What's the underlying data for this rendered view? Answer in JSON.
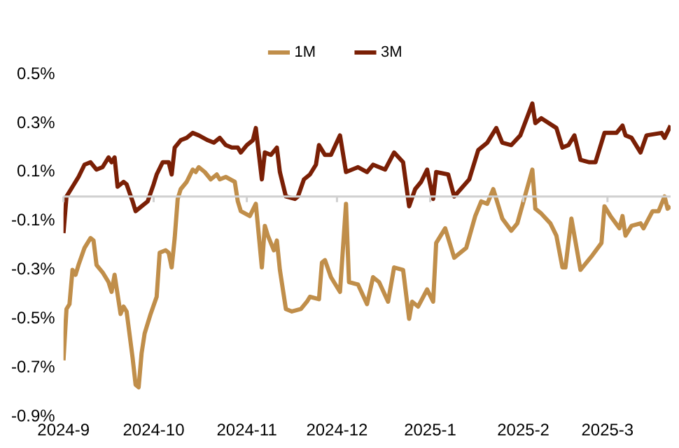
{
  "chart_data": {
    "type": "line",
    "legend": "top",
    "line_style": "solid",
    "marker": "none",
    "grid": false,
    "ylim": [
      -0.9,
      0.5
    ],
    "yticks": [
      {
        "value": -0.9,
        "label": "-0.9%"
      },
      {
        "value": -0.7,
        "label": "-0.7%"
      },
      {
        "value": -0.5,
        "label": "-0.5%"
      },
      {
        "value": -0.3,
        "label": "-0.3%"
      },
      {
        "value": -0.1,
        "label": "-0.1%"
      },
      {
        "value": 0.1,
        "label": "0.1%"
      },
      {
        "value": 0.3,
        "label": "0.3%"
      },
      {
        "value": 0.5,
        "label": "0.5%"
      }
    ],
    "xlim": [
      "2024-09-01",
      "2025-03-22"
    ],
    "xticks": [
      {
        "value": "2024-09-01",
        "label": "2024-9"
      },
      {
        "value": "2024-10-01",
        "label": "2024-10"
      },
      {
        "value": "2024-11-01",
        "label": "2024-11"
      },
      {
        "value": "2024-12-01",
        "label": "2024-12"
      },
      {
        "value": "2025-01-01",
        "label": "2025-1"
      },
      {
        "value": "2025-02-01",
        "label": "2025-2"
      },
      {
        "value": "2025-03-01",
        "label": "2025-3"
      }
    ],
    "series": [
      {
        "name": "1M",
        "color": "#c08e4a",
        "x": [
          "2024-09-01",
          "2024-09-02",
          "2024-09-03",
          "2024-09-04",
          "2024-09-05",
          "2024-09-06",
          "2024-09-08",
          "2024-09-10",
          "2024-09-11",
          "2024-09-12",
          "2024-09-14",
          "2024-09-16",
          "2024-09-17",
          "2024-09-18",
          "2024-09-20",
          "2024-09-21",
          "2024-09-22",
          "2024-09-24",
          "2024-09-25",
          "2024-09-26",
          "2024-09-27",
          "2024-09-28",
          "2024-09-30",
          "2024-10-02",
          "2024-10-03",
          "2024-10-05",
          "2024-10-06",
          "2024-10-07",
          "2024-10-08",
          "2024-10-09",
          "2024-10-10",
          "2024-10-12",
          "2024-10-14",
          "2024-10-15",
          "2024-10-16",
          "2024-10-18",
          "2024-10-20",
          "2024-10-22",
          "2024-10-23",
          "2024-10-25",
          "2024-10-28",
          "2024-10-29",
          "2024-10-30",
          "2024-11-02",
          "2024-11-04",
          "2024-11-06",
          "2024-11-07",
          "2024-11-08",
          "2024-11-10",
          "2024-11-11",
          "2024-11-12",
          "2024-11-14",
          "2024-11-16",
          "2024-11-19",
          "2024-11-21",
          "2024-11-22",
          "2024-11-25",
          "2024-11-26",
          "2024-11-27",
          "2024-11-29",
          "2024-12-02",
          "2024-12-04",
          "2024-12-05",
          "2024-12-08",
          "2024-12-11",
          "2024-12-13",
          "2024-12-15",
          "2024-12-18",
          "2024-12-20",
          "2024-12-23",
          "2024-12-25",
          "2024-12-26",
          "2024-12-28",
          "2024-12-31",
          "2025-01-02",
          "2025-01-03",
          "2025-01-06",
          "2025-01-09",
          "2025-01-13",
          "2025-01-16",
          "2025-01-18",
          "2025-01-20",
          "2025-01-22",
          "2025-01-25",
          "2025-01-28",
          "2025-01-30",
          "2025-02-04",
          "2025-02-05",
          "2025-02-07",
          "2025-02-10",
          "2025-02-12",
          "2025-02-14",
          "2025-02-15",
          "2025-02-17",
          "2025-02-20",
          "2025-02-24",
          "2025-02-27",
          "2025-02-28",
          "2025-03-02",
          "2025-03-05",
          "2025-03-06",
          "2025-03-07",
          "2025-03-09",
          "2025-03-12",
          "2025-03-13",
          "2025-03-16",
          "2025-03-18",
          "2025-03-20",
          "2025-03-21",
          "2025-03-22"
        ],
        "values": [
          -0.67,
          -0.46,
          -0.44,
          -0.3,
          -0.32,
          -0.28,
          -0.21,
          -0.17,
          -0.18,
          -0.28,
          -0.31,
          -0.35,
          -0.39,
          -0.32,
          -0.48,
          -0.45,
          -0.47,
          -0.66,
          -0.77,
          -0.78,
          -0.64,
          -0.56,
          -0.48,
          -0.41,
          -0.23,
          -0.22,
          -0.23,
          -0.29,
          -0.17,
          -0.01,
          0.03,
          0.06,
          0.11,
          0.1,
          0.12,
          0.1,
          0.07,
          0.09,
          0.07,
          0.08,
          0.06,
          -0.02,
          -0.06,
          -0.08,
          -0.03,
          -0.29,
          -0.12,
          -0.16,
          -0.22,
          -0.18,
          -0.3,
          -0.46,
          -0.47,
          -0.46,
          -0.43,
          -0.41,
          -0.42,
          -0.27,
          -0.26,
          -0.33,
          -0.39,
          -0.03,
          -0.35,
          -0.36,
          -0.44,
          -0.33,
          -0.35,
          -0.43,
          -0.29,
          -0.3,
          -0.5,
          -0.43,
          -0.45,
          -0.38,
          -0.43,
          -0.19,
          -0.13,
          -0.25,
          -0.21,
          -0.08,
          -0.02,
          -0.03,
          0.03,
          -0.09,
          -0.14,
          -0.11,
          0.11,
          -0.05,
          -0.07,
          -0.11,
          -0.16,
          -0.29,
          -0.29,
          -0.09,
          -0.3,
          -0.24,
          -0.19,
          -0.04,
          -0.08,
          -0.13,
          -0.08,
          -0.16,
          -0.12,
          -0.11,
          -0.13,
          -0.06,
          -0.06,
          0.0,
          -0.05,
          -0.04
        ]
      },
      {
        "name": "3M",
        "color": "#7a1f05",
        "x": [
          "2024-09-01",
          "2024-09-02",
          "2024-09-03",
          "2024-09-04",
          "2024-09-06",
          "2024-09-08",
          "2024-09-10",
          "2024-09-12",
          "2024-09-14",
          "2024-09-15",
          "2024-09-16",
          "2024-09-17",
          "2024-09-18",
          "2024-09-19",
          "2024-09-21",
          "2024-09-22",
          "2024-09-24",
          "2024-09-25",
          "2024-09-27",
          "2024-09-29",
          "2024-10-01",
          "2024-10-02",
          "2024-10-04",
          "2024-10-06",
          "2024-10-07",
          "2024-10-08",
          "2024-10-10",
          "2024-10-12",
          "2024-10-14",
          "2024-10-16",
          "2024-10-19",
          "2024-10-21",
          "2024-10-23",
          "2024-10-25",
          "2024-10-27",
          "2024-10-29",
          "2024-10-30",
          "2024-11-01",
          "2024-11-03",
          "2024-11-04",
          "2024-11-06",
          "2024-11-07",
          "2024-11-09",
          "2024-11-11",
          "2024-11-12",
          "2024-11-14",
          "2024-11-17",
          "2024-11-18",
          "2024-11-20",
          "2024-11-22",
          "2024-11-24",
          "2024-11-25",
          "2024-11-27",
          "2024-11-29",
          "2024-12-02",
          "2024-12-04",
          "2024-12-08",
          "2024-12-11",
          "2024-12-13",
          "2024-12-17",
          "2024-12-20",
          "2024-12-23",
          "2024-12-25",
          "2024-12-27",
          "2024-12-29",
          "2024-12-31",
          "2025-01-02",
          "2025-01-03",
          "2025-01-07",
          "2025-01-09",
          "2025-01-14",
          "2025-01-17",
          "2025-01-20",
          "2025-01-23",
          "2025-01-25",
          "2025-01-28",
          "2025-01-31",
          "2025-02-04",
          "2025-02-05",
          "2025-02-07",
          "2025-02-12",
          "2025-02-14",
          "2025-02-16",
          "2025-02-18",
          "2025-02-20",
          "2025-02-23",
          "2025-02-25",
          "2025-02-28",
          "2025-03-04",
          "2025-03-06",
          "2025-03-07",
          "2025-03-09",
          "2025-03-12",
          "2025-03-14",
          "2025-03-19",
          "2025-03-20",
          "2025-03-22"
        ],
        "values": [
          -0.15,
          0.0,
          0.02,
          0.04,
          0.08,
          0.13,
          0.14,
          0.11,
          0.12,
          0.14,
          0.16,
          0.14,
          0.16,
          0.04,
          0.06,
          0.05,
          -0.02,
          -0.06,
          -0.04,
          -0.02,
          0.05,
          0.09,
          0.14,
          0.14,
          0.09,
          0.2,
          0.23,
          0.24,
          0.26,
          0.25,
          0.23,
          0.22,
          0.24,
          0.21,
          0.2,
          0.2,
          0.18,
          0.21,
          0.23,
          0.28,
          0.07,
          0.18,
          0.17,
          0.2,
          0.1,
          0.0,
          -0.01,
          0.0,
          0.07,
          0.09,
          0.13,
          0.21,
          0.17,
          0.17,
          0.25,
          0.1,
          0.12,
          0.1,
          0.13,
          0.11,
          0.18,
          0.14,
          -0.04,
          0.03,
          0.06,
          0.11,
          -0.01,
          0.1,
          0.09,
          0.0,
          0.07,
          0.19,
          0.22,
          0.28,
          0.22,
          0.21,
          0.25,
          0.38,
          0.3,
          0.32,
          0.28,
          0.2,
          0.21,
          0.25,
          0.15,
          0.14,
          0.14,
          0.26,
          0.26,
          0.29,
          0.25,
          0.24,
          0.18,
          0.25,
          0.26,
          0.24,
          0.29
        ]
      }
    ]
  }
}
